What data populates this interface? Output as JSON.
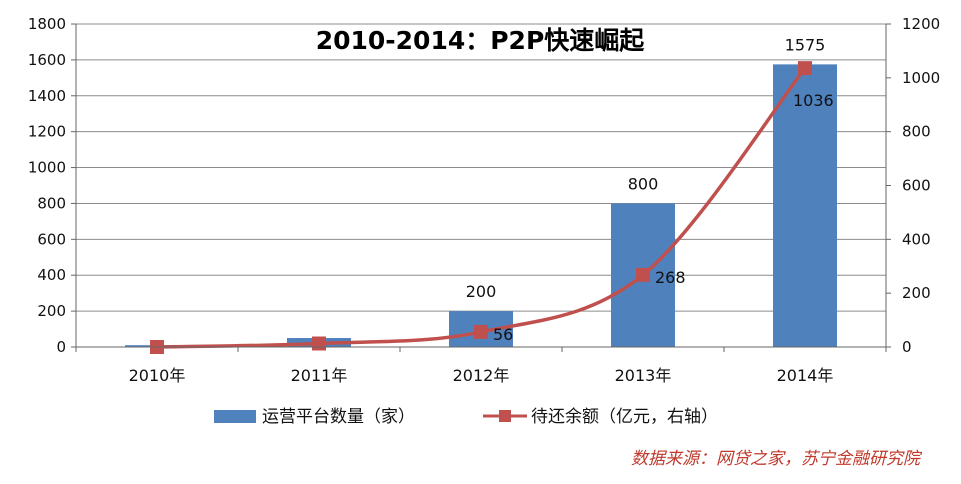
{
  "chart_data": {
    "type": "bar+line",
    "title": "2010-2014：P2P快速崛起",
    "categories": [
      "2010年",
      "2011年",
      "2012年",
      "2013年",
      "2014年"
    ],
    "series": [
      {
        "name": "运营平台数量（家）",
        "type": "bar",
        "axis": "left",
        "values": [
          10,
          50,
          200,
          800,
          1575
        ],
        "data_labels": [
          "",
          "",
          "200",
          "800",
          "1575"
        ],
        "color": "#4f81bd"
      },
      {
        "name": "待还余额（亿元，右轴）",
        "type": "line",
        "axis": "right",
        "values": [
          0,
          13,
          56,
          268,
          1036
        ],
        "data_labels": [
          "",
          "",
          "56",
          "268",
          "1036"
        ],
        "color": "#c0504d"
      }
    ],
    "y_left": {
      "min": 0,
      "max": 1800,
      "step": 200,
      "ticks": [
        "0",
        "200",
        "400",
        "600",
        "800",
        "1000",
        "1200",
        "1400",
        "1600",
        "1800"
      ]
    },
    "y_right": {
      "min": 0,
      "max": 1200,
      "step": 200,
      "ticks": [
        "0",
        "200",
        "400",
        "600",
        "800",
        "1000",
        "1200"
      ]
    },
    "grid": true,
    "legend_position": "bottom"
  },
  "source_note": "数据来源：网贷之家，苏宁金融研究院"
}
